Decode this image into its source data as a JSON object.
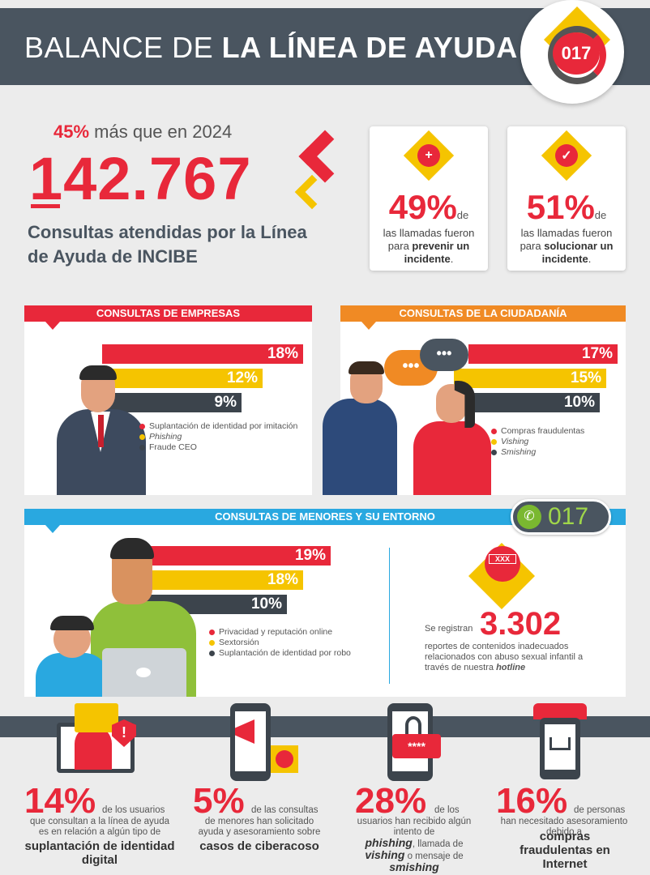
{
  "header": {
    "title_light": "BALANCE DE ",
    "title_bold": "LA LÍNEA DE AYUDA",
    "badge": "017"
  },
  "summary": {
    "increase_pct": "45%",
    "increase_text": " más que en 2024",
    "total": "142.767",
    "caption": "Consultas atendidas por la Línea de Ayuda de INCIBE"
  },
  "cards": [
    {
      "pct": "49%",
      "de": "de",
      "text_pre": "las llamadas fueron para ",
      "text_bold": "prevenir un incidente",
      "text_post": "."
    },
    {
      "pct": "51%",
      "de": "de",
      "text_pre": "las llamadas fueron para ",
      "text_bold": "solucionar un incidente",
      "text_post": "."
    }
  ],
  "empresas": {
    "title_light": "CONSULTAS DE ",
    "title_bold": "EMPRESAS",
    "bars": [
      {
        "value": "18%",
        "fraction": 0.18
      },
      {
        "value": "12%",
        "fraction": 0.12
      },
      {
        "value": "9%",
        "fraction": 0.09
      }
    ],
    "legend": [
      "Suplantación de identidad por imitación",
      "Phishing",
      "Fraude CEO"
    ]
  },
  "ciudadania": {
    "title": "CONSULTAS DE LA CIUDADANÍA",
    "bars": [
      {
        "value": "17%",
        "fraction": 0.17
      },
      {
        "value": "15%",
        "fraction": 0.15
      },
      {
        "value": "10%",
        "fraction": 0.1
      }
    ],
    "legend": [
      "Compras fraudulentas",
      "Vishing",
      "Smishing"
    ]
  },
  "menores": {
    "title": "CONSULTAS DE MENORES Y SU ENTORNO",
    "phone_badge": "017",
    "bars": [
      {
        "value": "19%",
        "fraction": 0.19
      },
      {
        "value": "18%",
        "fraction": 0.18
      },
      {
        "value": "10%",
        "fraction": 0.1
      }
    ],
    "legend": [
      "Privacidad y reputación online",
      "Sextorsión",
      "Suplantación de identidad por robo"
    ],
    "hotline_number": "3.302",
    "hotline_pre": "Se registran",
    "hotline_text": "reportes de contenidos inadecuados relacionados con abuso sexual infantil a través de nuestra ",
    "hotline_word": "hotline",
    "xxx": "XXX"
  },
  "bottom": [
    {
      "pct": "14%",
      "lead": "de los usuarios",
      "text": "que consultan a la línea de ayuda es en relación a algún tipo de",
      "bold": "suplantación de identidad digital"
    },
    {
      "pct": "5%",
      "lead": "de las consultas",
      "text": "de menores han solicitado ayuda y asesoramiento sobre",
      "bold": "casos de ciberacoso"
    },
    {
      "pct": "28%",
      "lead": "de los",
      "text": "usuarios han recibido algún intento de",
      "b1": "phishing",
      "t2": ", llamada de ",
      "b2": "vishing",
      "t3": " o mensaje de",
      "b3": "smishing"
    },
    {
      "pct": "16%",
      "lead": "de personas",
      "text": "han necesitado asesoramiento debido a",
      "bold": "compras fraudulentas en Internet"
    }
  ],
  "colors": {
    "red": "#e8283a",
    "yellow": "#f5c400",
    "dark": "#3c444c",
    "orange": "#f08a24",
    "blue": "#29a8e0",
    "slate": "#4a5560"
  }
}
